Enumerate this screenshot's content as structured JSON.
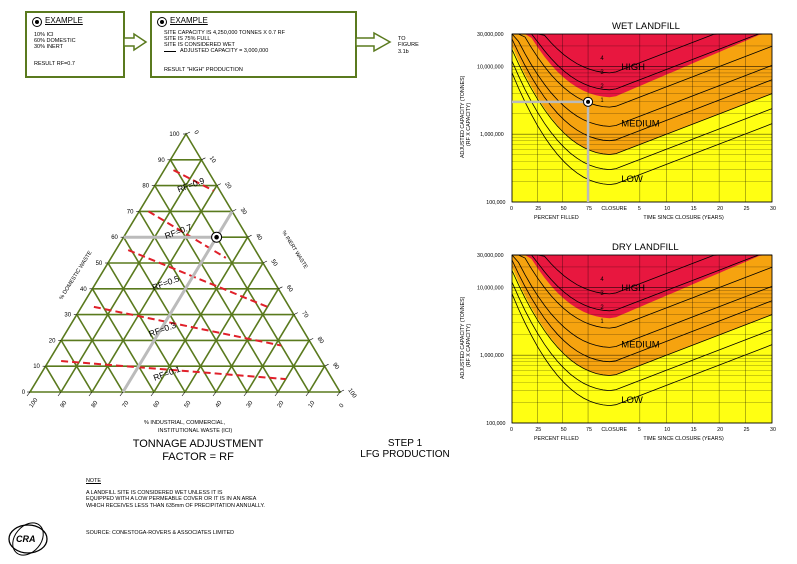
{
  "example1": {
    "title": "EXAMPLE",
    "lines": [
      "10% ICI",
      "60% DOMESTIC",
      "30% INERT"
    ],
    "result": "RESULT  RF=0.7"
  },
  "example2": {
    "title": "EXAMPLE",
    "lines": [
      "SITE CAPACITY IS 4,250,000 TONNES X 0.7 RF",
      "SITE IS 75% FULL",
      "SITE IS CONSIDERED WET"
    ],
    "legend": "ADJUSTED CAPACITY = 3,000,000",
    "result": "RESULT \"HIGH\" PRODUCTION"
  },
  "to_figure": [
    "TO",
    "FIGURE",
    "3.1b"
  ],
  "ternary": {
    "left_axis": "% DOMESTIC WASTE",
    "right_axis": "% INERT WASTE",
    "bottom_axis": [
      "% INDUSTRIAL, COMMERCIAL,",
      "INSTITUTIONAL WASTE (ICI)"
    ],
    "left_ticks": [
      "0",
      "10",
      "20",
      "30",
      "40",
      "50",
      "60",
      "70",
      "80",
      "90",
      "100"
    ],
    "right_ticks": [
      "0",
      "10",
      "20",
      "30",
      "40",
      "50",
      "60",
      "70",
      "80",
      "90",
      "100"
    ],
    "bottom_ticks": [
      "100",
      "90",
      "80",
      "70",
      "60",
      "50",
      "40",
      "30",
      "20",
      "10",
      "0"
    ],
    "rf_labels": [
      "RF=0.9",
      "RF=0.7",
      "RF=0.5",
      "RF=0.3",
      "RF=0.1"
    ],
    "example_point": {
      "domestic": 60,
      "inert": 30,
      "ici": 10
    }
  },
  "title_left": [
    "TONNAGE ADJUSTMENT",
    "FACTOR = RF"
  ],
  "step": [
    "STEP 1",
    "LFG PRODUCTION"
  ],
  "note": {
    "heading": "NOTE",
    "lines": [
      "A LANDFILL SITE IS CONSIDERED WET UNLESS IT IS",
      "EQUIPPED WITH A LOW PERMEABLE COVER OR IT IS IN AN AREA",
      "WHICH RECEIVES LESS THAN 635mm OF PRECIPITATION ANNUALLY."
    ]
  },
  "source": "SOURCE: CONESTOGA-ROVERS & ASSOCIATES LIMITED",
  "logo": "CRA",
  "colors": {
    "high": "#e8173f",
    "medium": "#f6a30f",
    "low": "#ffff12",
    "grid_green": "#5a7a1e",
    "rf_line": "#e0202a",
    "path_gray": "#bbbbbb"
  },
  "charts": [
    {
      "title": "WET LANDFILL",
      "ylabel": [
        "ADJUSTED CAPACITY (TONNES)",
        "(RF X CAPACITY)"
      ],
      "yticks": [
        "30,000,000",
        "10,000,000",
        "1,000,000",
        "100,000"
      ],
      "xticks_left": [
        "0",
        "25",
        "50",
        "75"
      ],
      "closure": "CLOSURE",
      "xticks_right": [
        "5",
        "10",
        "15",
        "20",
        "25",
        "30"
      ],
      "xlabel_left": "PERCENT FILLED",
      "xlabel_right": "TIME SINCE CLOSURE (YEARS)",
      "zones": [
        "HIGH",
        "MEDIUM",
        "LOW"
      ],
      "curve_labels": [
        "4",
        "3",
        "2",
        "1"
      ],
      "example": true
    },
    {
      "title": "DRY LANDFILL",
      "ylabel": [
        "ADJUSTED CAPACITY (TONNES)",
        "(RF X CAPACITY)"
      ],
      "yticks": [
        "30,000,000",
        "10,000,000",
        "1,000,000",
        "100,000"
      ],
      "xticks_left": [
        "0",
        "25",
        "50",
        "75"
      ],
      "closure": "CLOSURE",
      "xticks_right": [
        "5",
        "10",
        "15",
        "20",
        "25",
        "30"
      ],
      "xlabel_left": "PERCENT FILLED",
      "xlabel_right": "TIME SINCE CLOSURE (YEARS)",
      "zones": [
        "HIGH",
        "MEDIUM",
        "LOW"
      ],
      "curve_labels": [
        "4",
        "3",
        "2",
        "1"
      ],
      "example": false
    }
  ]
}
